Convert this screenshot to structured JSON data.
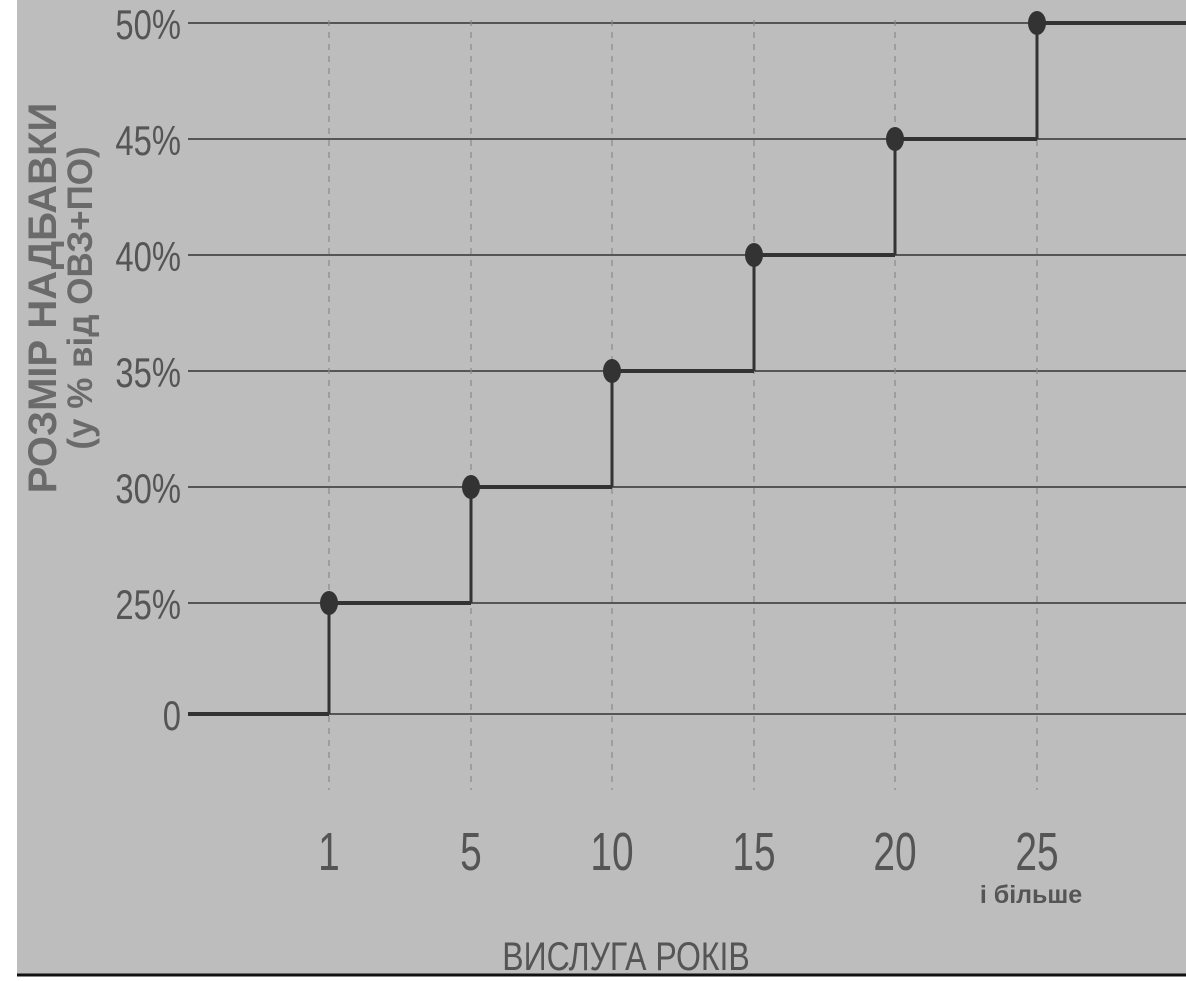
{
  "chart_data": {
    "type": "line",
    "subtype": "step",
    "ylabel_line1": "РОЗМІР НАДБАВКИ",
    "ylabel_line2": "(у % від ОВЗ+ПО)",
    "xlabel": "ВИСЛУГА РОКІВ",
    "x_tick_labels": [
      "1",
      "5",
      "10",
      "15",
      "20",
      "25"
    ],
    "x_tick_note": "і більше",
    "y_tick_labels": [
      "0",
      "25%",
      "30%",
      "35%",
      "40%",
      "45%",
      "50%"
    ],
    "y_values": [
      0,
      25,
      30,
      35,
      40,
      45,
      50
    ],
    "points": [
      {
        "x": "1",
        "y": 25
      },
      {
        "x": "5",
        "y": 30
      },
      {
        "x": "10",
        "y": 35
      },
      {
        "x": "15",
        "y": 40
      },
      {
        "x": "20",
        "y": 45
      },
      {
        "x": "25",
        "y": 50
      }
    ],
    "grid": true,
    "colors": {
      "background": "#bdbdbd",
      "gridline": "#555555",
      "step_line": "#333333",
      "marker": "#333333",
      "axis_label": "#6a6a6a"
    }
  }
}
